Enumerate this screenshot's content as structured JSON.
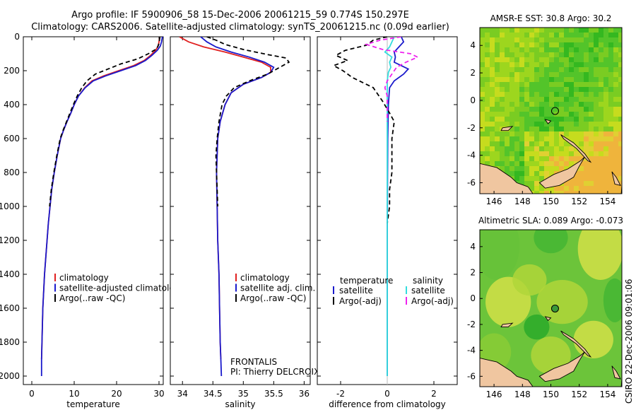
{
  "header": {
    "line1": "Argo profile: IF 5900906_58 15-Dec-2006 20061215_59 0.774S 150.297E",
    "line2": "Climatology: CARS2006. Satellite-adjusted climatology: synTS_20061215.nc (0.09d earlier)"
  },
  "credit": "CSIRO 22-Dec-2006 09:01:06",
  "chart_data": [
    {
      "type": "line",
      "xlabel": "temperature",
      "xlim": [
        -2,
        31
      ],
      "xticks": [
        0,
        10,
        20,
        30
      ],
      "ylim": [
        0,
        2050
      ],
      "yreversed": true,
      "yticks": [
        0,
        200,
        400,
        600,
        800,
        1000,
        1200,
        1400,
        1600,
        1800,
        2000
      ],
      "legend": [
        "climatology",
        "satellite-adjusted climatology",
        "Argo(..raw -QC)"
      ],
      "series": [
        {
          "name": "climatology",
          "color": "#e02020",
          "dash": "",
          "points": [
            [
              30.2,
              0
            ],
            [
              30.0,
              30
            ],
            [
              29.8,
              55
            ],
            [
              29.2,
              80
            ],
            [
              28.0,
              110
            ],
            [
              26.5,
              140
            ],
            [
              24.0,
              170
            ],
            [
              20.5,
              200
            ],
            [
              17.0,
              230
            ],
            [
              14.2,
              260
            ],
            [
              12.5,
              300
            ],
            [
              11.0,
              350
            ],
            [
              10.0,
              400
            ],
            [
              9.2,
              450
            ],
            [
              8.3,
              500
            ],
            [
              7.5,
              550
            ],
            [
              6.8,
              600
            ],
            [
              6.0,
              700
            ],
            [
              5.3,
              800
            ],
            [
              4.7,
              900
            ],
            [
              4.3,
              1000
            ],
            [
              3.9,
              1100
            ],
            [
              3.6,
              1200
            ],
            [
              3.3,
              1300
            ],
            [
              3.0,
              1400
            ],
            [
              2.8,
              1500
            ],
            [
              2.6,
              1600
            ],
            [
              2.5,
              1700
            ],
            [
              2.4,
              1800
            ],
            [
              2.3,
              1900
            ]
          ]
        },
        {
          "name": "satellite-adjusted climatology",
          "color": "#1a1acc",
          "dash": "",
          "points": [
            [
              30.8,
              0
            ],
            [
              30.6,
              30
            ],
            [
              30.3,
              55
            ],
            [
              29.6,
              80
            ],
            [
              28.3,
              110
            ],
            [
              26.8,
              140
            ],
            [
              24.5,
              170
            ],
            [
              21.0,
              200
            ],
            [
              17.5,
              230
            ],
            [
              14.5,
              260
            ],
            [
              12.6,
              300
            ],
            [
              11.0,
              350
            ],
            [
              10.0,
              400
            ],
            [
              9.2,
              450
            ],
            [
              8.3,
              500
            ],
            [
              7.5,
              550
            ],
            [
              6.8,
              600
            ],
            [
              6.0,
              700
            ],
            [
              5.3,
              800
            ],
            [
              4.7,
              900
            ],
            [
              4.3,
              1000
            ],
            [
              3.9,
              1100
            ],
            [
              3.6,
              1200
            ],
            [
              3.3,
              1300
            ],
            [
              3.0,
              1400
            ],
            [
              2.8,
              1500
            ],
            [
              2.6,
              1600
            ],
            [
              2.5,
              1700
            ],
            [
              2.4,
              1800
            ],
            [
              2.3,
              1900
            ],
            [
              2.3,
              2000
            ]
          ]
        },
        {
          "name": "Argo(..raw -QC)",
          "color": "#000000",
          "dash": "6,4",
          "points": [
            [
              30.2,
              0
            ],
            [
              30.0,
              40
            ],
            [
              29.5,
              70
            ],
            [
              27.5,
              100
            ],
            [
              25.0,
              130
            ],
            [
              21.0,
              160
            ],
            [
              18.0,
              190
            ],
            [
              15.0,
              220
            ],
            [
              13.0,
              260
            ],
            [
              11.8,
              300
            ],
            [
              10.7,
              350
            ],
            [
              9.8,
              400
            ],
            [
              9.0,
              450
            ],
            [
              8.2,
              500
            ],
            [
              7.4,
              550
            ],
            [
              6.7,
              600
            ],
            [
              5.9,
              700
            ],
            [
              5.2,
              800
            ],
            [
              4.6,
              900
            ],
            [
              4.2,
              1000
            ]
          ]
        }
      ]
    },
    {
      "type": "line",
      "xlabel": "salinity",
      "xlim": [
        33.8,
        36.1
      ],
      "xticks": [
        34,
        34.5,
        35,
        35.5,
        36
      ],
      "ylim": [
        0,
        2050
      ],
      "yreversed": true,
      "legend": [
        "climatology",
        "satellite adj. clim.",
        "Argo(..raw -QC)"
      ],
      "annotation": [
        "FRONTALIS",
        "PI: Thierry DELCROIX"
      ],
      "series": [
        {
          "name": "climatology",
          "color": "#e02020",
          "dash": "",
          "points": [
            [
              33.95,
              0
            ],
            [
              34.1,
              30
            ],
            [
              34.35,
              60
            ],
            [
              34.7,
              90
            ],
            [
              35.0,
              120
            ],
            [
              35.3,
              150
            ],
            [
              35.45,
              180
            ],
            [
              35.45,
              210
            ],
            [
              35.3,
              240
            ],
            [
              35.0,
              280
            ],
            [
              34.8,
              330
            ],
            [
              34.7,
              400
            ],
            [
              34.62,
              500
            ],
            [
              34.58,
              600
            ],
            [
              34.56,
              800
            ],
            [
              34.57,
              1000
            ],
            [
              34.58,
              1200
            ],
            [
              34.6,
              1400
            ],
            [
              34.61,
              1600
            ],
            [
              34.62,
              1800
            ],
            [
              34.63,
              1900
            ]
          ]
        },
        {
          "name": "satellite adj. clim.",
          "color": "#1a1acc",
          "dash": "",
          "points": [
            [
              34.3,
              0
            ],
            [
              34.4,
              30
            ],
            [
              34.55,
              60
            ],
            [
              34.8,
              90
            ],
            [
              35.1,
              120
            ],
            [
              35.35,
              150
            ],
            [
              35.5,
              180
            ],
            [
              35.45,
              210
            ],
            [
              35.3,
              240
            ],
            [
              35.0,
              280
            ],
            [
              34.8,
              330
            ],
            [
              34.7,
              400
            ],
            [
              34.62,
              500
            ],
            [
              34.58,
              600
            ],
            [
              34.56,
              800
            ],
            [
              34.57,
              1000
            ],
            [
              34.58,
              1200
            ],
            [
              34.6,
              1400
            ],
            [
              34.61,
              1600
            ],
            [
              34.62,
              1800
            ],
            [
              34.63,
              1900
            ],
            [
              34.64,
              2000
            ]
          ]
        },
        {
          "name": "Argo(..raw -QC)",
          "color": "#000000",
          "dash": "6,4",
          "points": [
            [
              34.4,
              0
            ],
            [
              34.55,
              20
            ],
            [
              34.7,
              45
            ],
            [
              35.0,
              75
            ],
            [
              35.4,
              105
            ],
            [
              35.7,
              125
            ],
            [
              35.75,
              150
            ],
            [
              35.6,
              180
            ],
            [
              35.4,
              220
            ],
            [
              35.1,
              260
            ],
            [
              34.85,
              300
            ],
            [
              34.72,
              350
            ],
            [
              34.65,
              400
            ],
            [
              34.6,
              500
            ],
            [
              34.57,
              600
            ],
            [
              34.55,
              700
            ],
            [
              34.56,
              800
            ],
            [
              34.57,
              900
            ],
            [
              34.58,
              1000
            ]
          ]
        }
      ]
    },
    {
      "type": "line",
      "xlabel": "difference from climatology",
      "xlim": [
        -3.0,
        3.0
      ],
      "xticks": [
        -2,
        0,
        2
      ],
      "ylim": [
        0,
        2050
      ],
      "yreversed": true,
      "legend": [
        "temperature",
        "satellite",
        "Argo(-adj)",
        "salinity",
        "satellite",
        "Argo(-adj)"
      ],
      "series": [
        {
          "name": "satellite",
          "color": "#1a1acc",
          "dash": "",
          "points": [
            [
              0.6,
              0
            ],
            [
              0.7,
              30
            ],
            [
              0.5,
              60
            ],
            [
              0.3,
              90
            ],
            [
              0.35,
              120
            ],
            [
              0.3,
              150
            ],
            [
              0.6,
              170
            ],
            [
              0.9,
              190
            ],
            [
              0.7,
              220
            ],
            [
              0.3,
              260
            ],
            [
              0.1,
              300
            ],
            [
              0.05,
              400
            ],
            [
              0.02,
              600
            ],
            [
              0.01,
              900
            ],
            [
              0.0,
              1200
            ],
            [
              0.0,
              1600
            ],
            [
              0.0,
              2000
            ]
          ]
        },
        {
          "name": "Argo(-adj)",
          "color": "#000000",
          "dash": "6,4",
          "points": [
            [
              0.0,
              0
            ],
            [
              -0.6,
              20
            ],
            [
              -0.9,
              50
            ],
            [
              -1.8,
              80
            ],
            [
              -2.2,
              110
            ],
            [
              -1.7,
              140
            ],
            [
              -2.3,
              170
            ],
            [
              -1.9,
              200
            ],
            [
              -1.5,
              240
            ],
            [
              -0.6,
              300
            ],
            [
              -0.2,
              380
            ],
            [
              0.1,
              450
            ],
            [
              0.3,
              500
            ],
            [
              0.2,
              600
            ],
            [
              0.2,
              800
            ],
            [
              0.1,
              900
            ],
            [
              0.1,
              1000
            ],
            [
              0.0,
              1100
            ]
          ]
        },
        {
          "name": "satellite",
          "color": "#33dddd",
          "dash": "",
          "points": [
            [
              0.3,
              0
            ],
            [
              0.2,
              30
            ],
            [
              0.1,
              60
            ],
            [
              -0.1,
              90
            ],
            [
              0.2,
              120
            ],
            [
              0.1,
              150
            ],
            [
              0.15,
              180
            ],
            [
              0.05,
              210
            ],
            [
              0.0,
              260
            ],
            [
              0.0,
              300
            ],
            [
              0.0,
              400
            ],
            [
              0.0,
              600
            ],
            [
              0.0,
              800
            ],
            [
              0.0,
              1200
            ],
            [
              0.0,
              1600
            ],
            [
              0.0,
              2000
            ]
          ]
        },
        {
          "name": "Argo(-adj)",
          "color": "#ee22ee",
          "dash": "6,4",
          "points": [
            [
              0.6,
              0
            ],
            [
              -0.3,
              20
            ],
            [
              -0.9,
              45
            ],
            [
              -0.2,
              75
            ],
            [
              1.0,
              100
            ],
            [
              1.3,
              120
            ],
            [
              0.8,
              150
            ],
            [
              0.4,
              180
            ],
            [
              0.2,
              220
            ],
            [
              0.0,
              260
            ],
            [
              -0.1,
              300
            ],
            [
              0.0,
              350
            ],
            [
              0.0,
              400
            ],
            [
              0.0,
              500
            ]
          ]
        }
      ]
    },
    {
      "type": "heatmap",
      "title": "AMSR-E SST: 30.8 Argo: 30.2",
      "xlim": [
        145,
        155
      ],
      "ylim": [
        -6.8,
        5.3
      ],
      "xticks": [
        146,
        148,
        150,
        152,
        154
      ],
      "yticks": [
        -6,
        -4,
        -2,
        0,
        2,
        4
      ],
      "argo_position": [
        150.297,
        -0.774
      ],
      "colors": [
        "#1ea81e",
        "#34b820",
        "#53c42a",
        "#7acc22",
        "#9dd61e",
        "#c6dc1e",
        "#e0d032",
        "#efb43c"
      ]
    },
    {
      "type": "heatmap",
      "title": "Altimetric SLA: 0.089 Argo: -0.073",
      "xlim": [
        145,
        155
      ],
      "ylim": [
        -6.8,
        5.3
      ],
      "xticks": [
        146,
        148,
        150,
        152,
        154
      ],
      "yticks": [
        -6,
        -4,
        -2,
        0,
        2,
        4
      ],
      "argo_position": [
        150.297,
        -0.774
      ],
      "colors": [
        "#2aaa2a",
        "#44b634",
        "#66c23a",
        "#8acc36",
        "#b0d63a",
        "#d2e048"
      ]
    }
  ]
}
